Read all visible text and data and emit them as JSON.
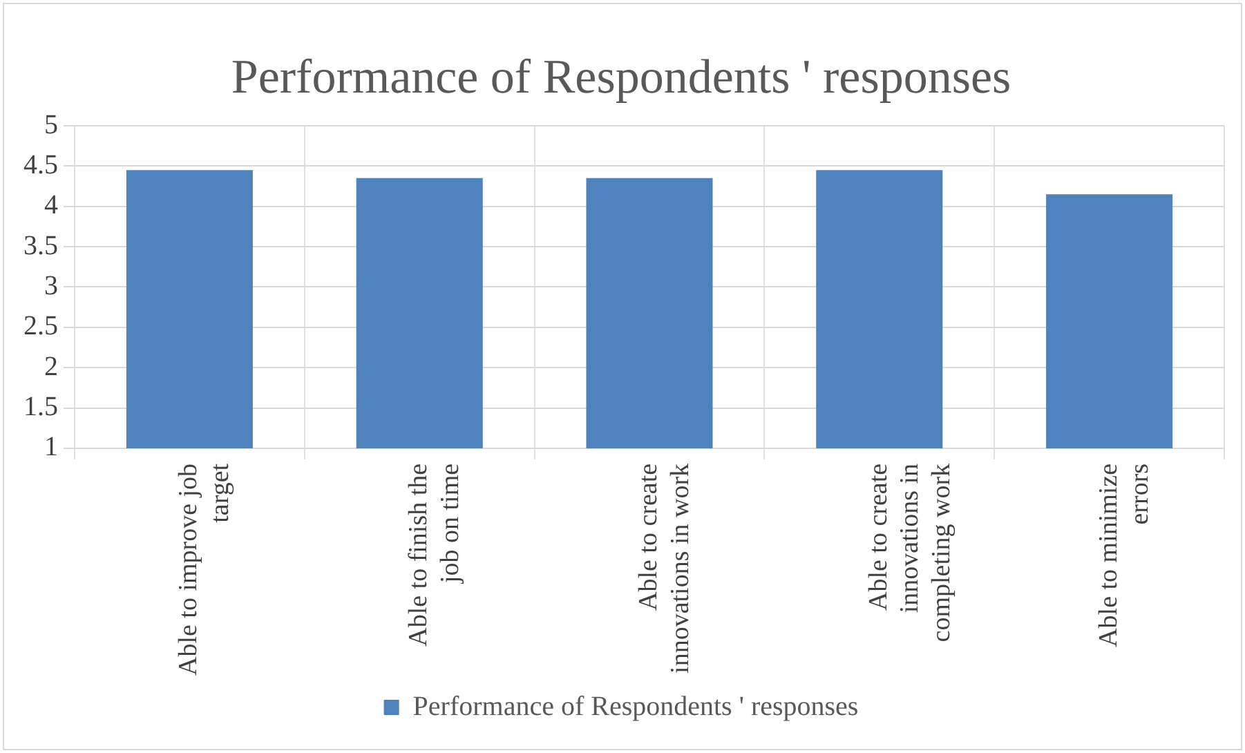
{
  "chart_data": {
    "type": "bar",
    "title": "Performance of Respondents ' responses",
    "categories": [
      "Able to improve job target",
      "Able to finish the job on time",
      "Able to create innovations in work",
      "Able to create innovations in completing work",
      "Able to minimize errors"
    ],
    "series": [
      {
        "name": "Performance of Respondents ' responses",
        "color": "#4f81bd",
        "values": [
          4.45,
          4.35,
          4.35,
          4.45,
          4.15
        ]
      }
    ],
    "ylim": [
      1,
      5
    ],
    "yticks": [
      1,
      1.5,
      2,
      2.5,
      3,
      3.5,
      4,
      4.5,
      5
    ],
    "grid": true,
    "legend": "bottom"
  }
}
